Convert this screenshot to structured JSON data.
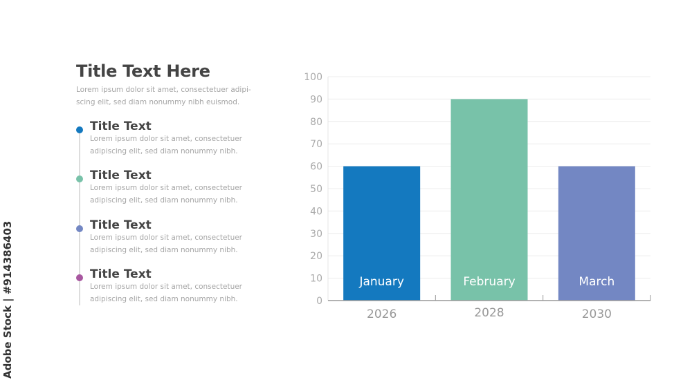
{
  "header": {
    "title": "Title Text Here",
    "description": "Lorem ipsum dolor sit amet, consectetuer adipi-scing elit, sed diam nonummy nibh euismod."
  },
  "items": [
    {
      "title": "Title Text",
      "description": "Lorem ipsum dolor sit amet, consectetuer adipiscing elit, sed diam nonummy nibh.",
      "color": "#1479bf"
    },
    {
      "title": "Title Text",
      "description": "Lorem ipsum dolor sit amet, consectetuer adipiscing elit, sed diam nonummy nibh.",
      "color": "#78c2a9"
    },
    {
      "title": "Title Text",
      "description": "Lorem ipsum dolor sit amet, consectetuer adipiscing elit, sed diam nonummy nibh.",
      "color": "#7387c3"
    },
    {
      "title": "Title Text",
      "description": "Lorem ipsum dolor sit amet, consectetuer adipiscing elit, sed diam nonummy nibh.",
      "color": "#a857a0"
    }
  ],
  "watermark": "Adobe Stock | #914386403",
  "chart_data": {
    "type": "bar",
    "categories": [
      "2026",
      "2028",
      "2030"
    ],
    "bar_labels": [
      "January",
      "February",
      "March"
    ],
    "values": [
      60,
      90,
      60
    ],
    "colors": [
      "#1479bf",
      "#78c2a9",
      "#7387c3"
    ],
    "ylim": [
      0,
      100
    ],
    "yticks": [
      0,
      10,
      20,
      30,
      40,
      50,
      60,
      70,
      80,
      90,
      100
    ],
    "grid": true,
    "title": "",
    "xlabel": "",
    "ylabel": ""
  }
}
